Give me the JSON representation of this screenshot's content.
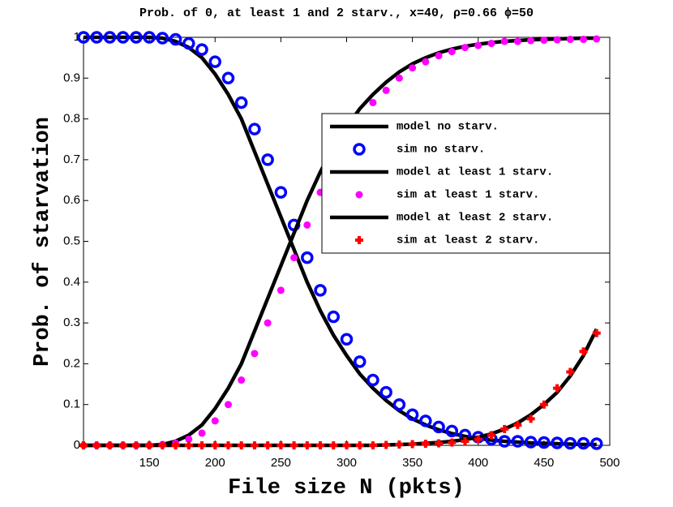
{
  "chart_data": {
    "type": "line",
    "title": "Prob. of 0, at least 1 and 2 starv., x=40, ρ=0.66 ϕ=50",
    "xlabel": "File size N (pkts)",
    "ylabel": "Prob. of starvation",
    "xlim": [
      100,
      500
    ],
    "xticks": [
      150,
      200,
      250,
      300,
      350,
      400,
      450,
      500
    ],
    "ylim": [
      0,
      1
    ],
    "yticks": [
      0,
      0.1,
      0.2,
      0.3,
      0.4,
      0.5,
      0.6,
      0.7,
      0.8,
      0.9,
      1
    ],
    "legend": "upper right",
    "x": [
      100,
      110,
      120,
      130,
      140,
      150,
      160,
      170,
      180,
      190,
      200,
      210,
      220,
      230,
      240,
      250,
      260,
      270,
      280,
      290,
      300,
      310,
      320,
      330,
      340,
      350,
      360,
      370,
      380,
      390,
      400,
      410,
      420,
      430,
      440,
      450,
      460,
      470,
      480,
      490
    ],
    "series": [
      {
        "name": "model no starv.",
        "color": "#000000",
        "marker": "none",
        "values": [
          1,
          1,
          1,
          1,
          1,
          1,
          0.998,
          0.99,
          0.975,
          0.95,
          0.91,
          0.86,
          0.8,
          0.72,
          0.64,
          0.56,
          0.48,
          0.4,
          0.33,
          0.27,
          0.22,
          0.175,
          0.14,
          0.11,
          0.085,
          0.065,
          0.05,
          0.038,
          0.029,
          0.022,
          0.017,
          0.013,
          0.01,
          0.008,
          0.006,
          0.005,
          0.004,
          0.003,
          0.002,
          0.002
        ]
      },
      {
        "name": "sim no starv.",
        "color": "#0000ff",
        "marker": "circle",
        "values": [
          1,
          1,
          1,
          1,
          1,
          1,
          0.998,
          0.995,
          0.985,
          0.97,
          0.94,
          0.9,
          0.84,
          0.775,
          0.7,
          0.62,
          0.54,
          0.46,
          0.38,
          0.315,
          0.26,
          0.205,
          0.16,
          0.13,
          0.1,
          0.075,
          0.06,
          0.045,
          0.035,
          0.025,
          0.02,
          0.015,
          0.01,
          0.01,
          0.008,
          0.007,
          0.006,
          0.005,
          0.005,
          0.004
        ]
      },
      {
        "name": "model at least 1 starv.",
        "color": "#000000",
        "marker": "none",
        "values": [
          0,
          0,
          0,
          0,
          0,
          0,
          0.002,
          0.01,
          0.025,
          0.05,
          0.09,
          0.14,
          0.2,
          0.28,
          0.36,
          0.44,
          0.52,
          0.6,
          0.67,
          0.73,
          0.78,
          0.825,
          0.86,
          0.89,
          0.915,
          0.935,
          0.95,
          0.962,
          0.971,
          0.978,
          0.983,
          0.987,
          0.99,
          0.992,
          0.994,
          0.995,
          0.996,
          0.997,
          0.998,
          0.998
        ]
      },
      {
        "name": "sim at least 1 starv.",
        "color": "#ff00ff",
        "marker": "dot",
        "values": [
          0,
          0,
          0,
          0,
          0,
          0,
          0.002,
          0.005,
          0.015,
          0.03,
          0.06,
          0.1,
          0.16,
          0.225,
          0.3,
          0.38,
          0.46,
          0.54,
          0.62,
          0.685,
          0.74,
          0.795,
          0.84,
          0.87,
          0.9,
          0.925,
          0.94,
          0.955,
          0.965,
          0.975,
          0.98,
          0.985,
          0.99,
          0.99,
          0.992,
          0.993,
          0.994,
          0.995,
          0.995,
          0.996
        ]
      },
      {
        "name": "model at least 2 starv.",
        "color": "#000000",
        "marker": "none",
        "values": [
          0,
          0,
          0,
          0,
          0,
          0,
          0,
          0,
          0,
          0,
          0,
          0,
          0,
          0,
          0,
          0,
          0,
          0,
          0,
          0,
          0,
          0,
          0,
          0.001,
          0.002,
          0.003,
          0.005,
          0.007,
          0.01,
          0.014,
          0.02,
          0.028,
          0.04,
          0.055,
          0.075,
          0.1,
          0.13,
          0.17,
          0.22,
          0.285
        ]
      },
      {
        "name": "sim at least 2 starv.",
        "color": "#ff0000",
        "marker": "plus",
        "values": [
          0,
          0,
          0,
          0,
          0,
          0,
          0,
          0,
          0,
          0,
          0,
          0,
          0,
          0,
          0,
          0,
          0,
          0,
          0,
          0,
          0,
          0,
          0,
          0.001,
          0.002,
          0.003,
          0.004,
          0.005,
          0.007,
          0.01,
          0.015,
          0.025,
          0.04,
          0.05,
          0.065,
          0.1,
          0.14,
          0.18,
          0.23,
          0.275
        ]
      }
    ]
  }
}
